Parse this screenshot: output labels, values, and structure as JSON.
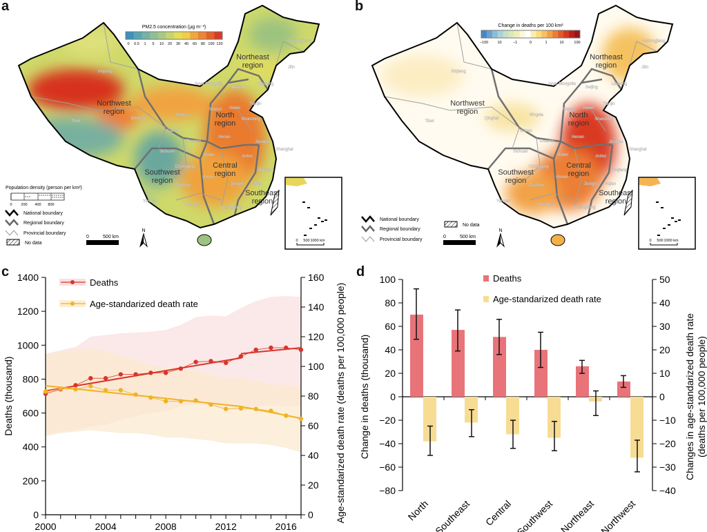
{
  "panels": {
    "a": "a",
    "b": "b",
    "c": "c",
    "d": "d"
  },
  "map_a": {
    "colorbar_title": "PM2.5 concentration (µg m⁻³)",
    "colorbar_ticks": [
      "0",
      "0.5",
      "1",
      "5",
      "10",
      "20",
      "30",
      "40",
      "60",
      "80",
      "100",
      "120"
    ],
    "colorbar_colors": [
      "#3f8fbf",
      "#5aa5b5",
      "#76b2a6",
      "#8fbf95",
      "#a8c986",
      "#c6d56e",
      "#e2de5a",
      "#f2cc4a",
      "#f0a83e",
      "#ec8434",
      "#e4602b",
      "#d93a25"
    ],
    "pop_legend_title": "Population density (person per km²)",
    "pop_ticks": [
      "0",
      "200",
      "400",
      "800"
    ],
    "scale_zero": "0",
    "scale_label": "500 km",
    "inset_scale": [
      "0",
      "500",
      "1000 km"
    ],
    "north": "N"
  },
  "map_b": {
    "colorbar_title": "Change in deaths per 100 km²",
    "colorbar_ticks": [
      "−100",
      "10",
      "−1",
      "0",
      "1",
      "10",
      "100"
    ],
    "colorbar_colors": [
      "#4a86c4",
      "#6aa3cf",
      "#8cbfd6",
      "#aad3d5",
      "#c6e0c8",
      "#dde8b8",
      "#eef0b0",
      "#fbf7dd",
      "#fff",
      "#fbeeb0",
      "#f8dc80",
      "#f5c260",
      "#f2a246",
      "#ec7e34",
      "#e35a28",
      "#d23a22",
      "#b82020",
      "#951818"
    ],
    "nodata": "No data",
    "scale_zero": "0",
    "scale_label": "500 km",
    "inset_scale": [
      "0",
      "500",
      "1000 km"
    ],
    "north": "N"
  },
  "legend_boundaries": [
    "National boundary",
    "Regional boundary",
    "Provincial boundary",
    "No data"
  ],
  "regions": [
    "Northwest",
    "region",
    "North",
    "region",
    "Northeast",
    "region",
    "Central",
    "region",
    "Southwest",
    "region",
    "Southeast",
    "region"
  ],
  "provinces": [
    "Xinjiang",
    "Tibet",
    "Qinghai",
    "Gansu",
    "Ningxia",
    "Inner Mongolia",
    "Heilongjiang",
    "Jilin",
    "Liaoning",
    "Beijing",
    "Tianjin",
    "Hebei",
    "Shanxi",
    "Shandong",
    "Henan",
    "Jiangsu",
    "Shanghai",
    "Anhui",
    "Hubei",
    "Shaanxi",
    "Sichuan",
    "Chongqing",
    "Hunan",
    "Jiangxi",
    "Zhejiang",
    "Fujian",
    "Guizhou",
    "Yunnan",
    "Guangxi",
    "Guangdong"
  ],
  "chart_data": [
    {
      "type": "line",
      "panel": "c",
      "x": [
        2000,
        2001,
        2002,
        2003,
        2004,
        2005,
        2006,
        2007,
        2008,
        2009,
        2010,
        2011,
        2012,
        2013,
        2014,
        2015,
        2016,
        2017
      ],
      "xticks": [
        "2000",
        "2004",
        "2008",
        "2012",
        "2016"
      ],
      "ylabel": "Deaths (thousand)",
      "y2label": "Age-standarized death rate (deaths per 100,000 people)",
      "ylim": [
        0,
        1400
      ],
      "y2lim": [
        0,
        160
      ],
      "yticks": [
        "0",
        "200",
        "400",
        "600",
        "800",
        "1000",
        "1200",
        "1400"
      ],
      "y2ticks": [
        "0",
        "20",
        "40",
        "60",
        "80",
        "100",
        "120",
        "140",
        "160"
      ],
      "legend": "top-left",
      "series": [
        {
          "name": "Deaths",
          "axis": "left",
          "color": "#d9342b",
          "values": [
            714,
            740,
            764,
            805,
            805,
            828,
            828,
            837,
            837,
            862,
            901,
            906,
            896,
            934,
            973,
            985,
            985,
            973
          ],
          "upper": [
            950,
            970,
            990,
            1050,
            1060,
            1070,
            1075,
            1080,
            1090,
            1120,
            1165,
            1175,
            1170,
            1220,
            1260,
            1285,
            1290,
            1285
          ],
          "lower": [
            470,
            490,
            500,
            520,
            530,
            560,
            580,
            600,
            610,
            640,
            650,
            640,
            620,
            620,
            640,
            650,
            640,
            640
          ],
          "trend": [
            [
              2000,
              730
            ],
            [
              2013,
              925
            ],
            [
              2013,
              950
            ],
            [
              2017,
              985
            ]
          ]
        },
        {
          "name": "Age-standarized death rate",
          "axis": "right",
          "color": "#f0b323",
          "values": [
            83,
            85,
            84.6,
            86.7,
            84,
            84,
            81,
            79,
            76.5,
            76.5,
            77,
            74.3,
            71.3,
            71.7,
            71.3,
            70,
            66.8,
            64.7
          ],
          "upper": [
            108,
            110,
            111,
            112,
            110,
            107,
            104,
            101,
            99,
            98,
            97,
            94,
            92,
            92,
            90,
            88,
            87,
            86
          ],
          "lower": [
            53,
            55,
            56,
            57,
            56,
            55,
            55,
            54,
            52,
            52,
            51,
            50,
            48,
            48,
            48,
            47,
            45,
            42
          ],
          "trend": [
            [
              2000,
              87
            ],
            [
              2013,
              73
            ],
            [
              2013,
              73
            ],
            [
              2017,
              65
            ]
          ]
        }
      ]
    },
    {
      "type": "bar",
      "panel": "d",
      "categories": [
        "North",
        "Southeast",
        "Central",
        "Southwest",
        "Northeast",
        "Northwest"
      ],
      "ylabel": "Change in deaths (thousand)",
      "y2label": "Changes in age-standarized death rate (deaths per 100,000 people)",
      "y2label_lines": [
        "Changes in age-standarized death rate",
        "(deaths per 100,000 people)"
      ],
      "ylim": [
        -80,
        100
      ],
      "y2lim": [
        -40,
        50
      ],
      "yticks": [
        "−80",
        "−60",
        "−40",
        "−20",
        "0",
        "20",
        "40",
        "60",
        "80",
        "100"
      ],
      "y2ticks": [
        "−40",
        "−30",
        "−20",
        "−10",
        "0",
        "10",
        "20",
        "30",
        "40",
        "50"
      ],
      "legend": "top-center",
      "series": [
        {
          "name": "Deaths",
          "axis": "left",
          "color": "#e8747a",
          "values": [
            70,
            57,
            51,
            40,
            26,
            13
          ],
          "error": [
            [
              49,
              92
            ],
            [
              39,
              74
            ],
            [
              36,
              66
            ],
            [
              25,
              55
            ],
            [
              20,
              31
            ],
            [
              8,
              18
            ]
          ]
        },
        {
          "name": "Age-standarized death rate",
          "axis": "right",
          "color": "#f7dc93",
          "values": [
            -19,
            -11,
            -16,
            -17.5,
            -2,
            -26
          ],
          "error": [
            [
              -25,
              -12.5
            ],
            [
              -17,
              -5.5
            ],
            [
              -22,
              -10
            ],
            [
              -23,
              -10.5
            ],
            [
              -8,
              2.5
            ],
            [
              -32,
              -18.5
            ]
          ]
        }
      ]
    }
  ]
}
